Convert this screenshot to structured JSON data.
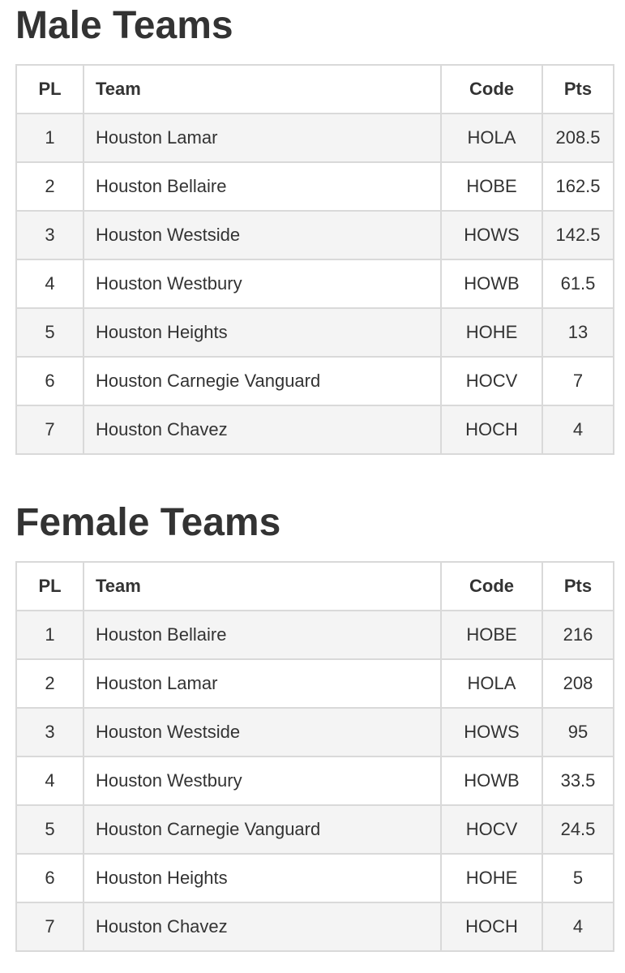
{
  "colors": {
    "text": "#333333",
    "border": "#d9d9d9",
    "stripe": "#f4f4f4",
    "background": "#ffffff"
  },
  "sections": [
    {
      "title": "Male Teams",
      "table": {
        "headers": [
          "PL",
          "Team",
          "Code",
          "Pts"
        ],
        "rows": [
          [
            "1",
            "Houston Lamar",
            "HOLA",
            "208.5"
          ],
          [
            "2",
            "Houston Bellaire",
            "HOBE",
            "162.5"
          ],
          [
            "3",
            "Houston Westside",
            "HOWS",
            "142.5"
          ],
          [
            "4",
            "Houston Westbury",
            "HOWB",
            "61.5"
          ],
          [
            "5",
            "Houston Heights",
            "HOHE",
            "13"
          ],
          [
            "6",
            "Houston Carnegie Vanguard",
            "HOCV",
            "7"
          ],
          [
            "7",
            "Houston Chavez",
            "HOCH",
            "4"
          ]
        ]
      }
    },
    {
      "title": "Female Teams",
      "table": {
        "headers": [
          "PL",
          "Team",
          "Code",
          "Pts"
        ],
        "rows": [
          [
            "1",
            "Houston Bellaire",
            "HOBE",
            "216"
          ],
          [
            "2",
            "Houston Lamar",
            "HOLA",
            "208"
          ],
          [
            "3",
            "Houston Westside",
            "HOWS",
            "95"
          ],
          [
            "4",
            "Houston Westbury",
            "HOWB",
            "33.5"
          ],
          [
            "5",
            "Houston Carnegie Vanguard",
            "HOCV",
            "24.5"
          ],
          [
            "6",
            "Houston Heights",
            "HOHE",
            "5"
          ],
          [
            "7",
            "Houston Chavez",
            "HOCH",
            "4"
          ]
        ]
      }
    }
  ]
}
